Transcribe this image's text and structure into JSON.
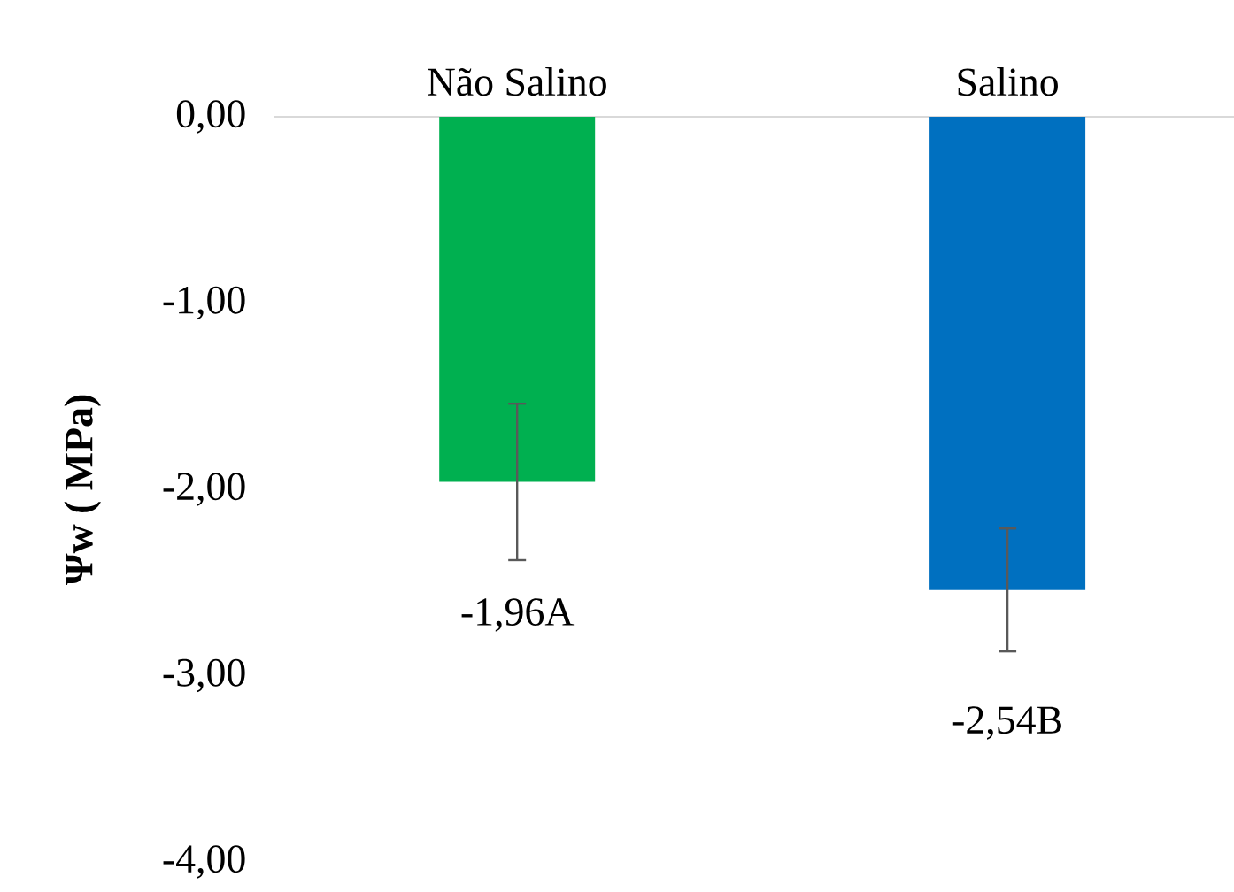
{
  "chart_data": {
    "type": "bar",
    "ylabel": "Ψw ( MPa)",
    "categories": [
      "Não Salino",
      "Salino"
    ],
    "values": [
      -1.96,
      -2.54
    ],
    "colors": [
      "#00b050",
      "#0070c0"
    ],
    "errors": [
      0.42,
      0.33
    ],
    "value_labels": [
      "-1,96A",
      "-2,54B"
    ],
    "ylim": [
      -4,
      0
    ],
    "yticks": [
      {
        "value": 0,
        "label": "0,00"
      },
      {
        "value": -1,
        "label": "-1,00"
      },
      {
        "value": -2,
        "label": "-2,00"
      },
      {
        "value": -3,
        "label": "-3,00"
      },
      {
        "value": -4,
        "label": "-4,00"
      }
    ],
    "grid": false
  }
}
